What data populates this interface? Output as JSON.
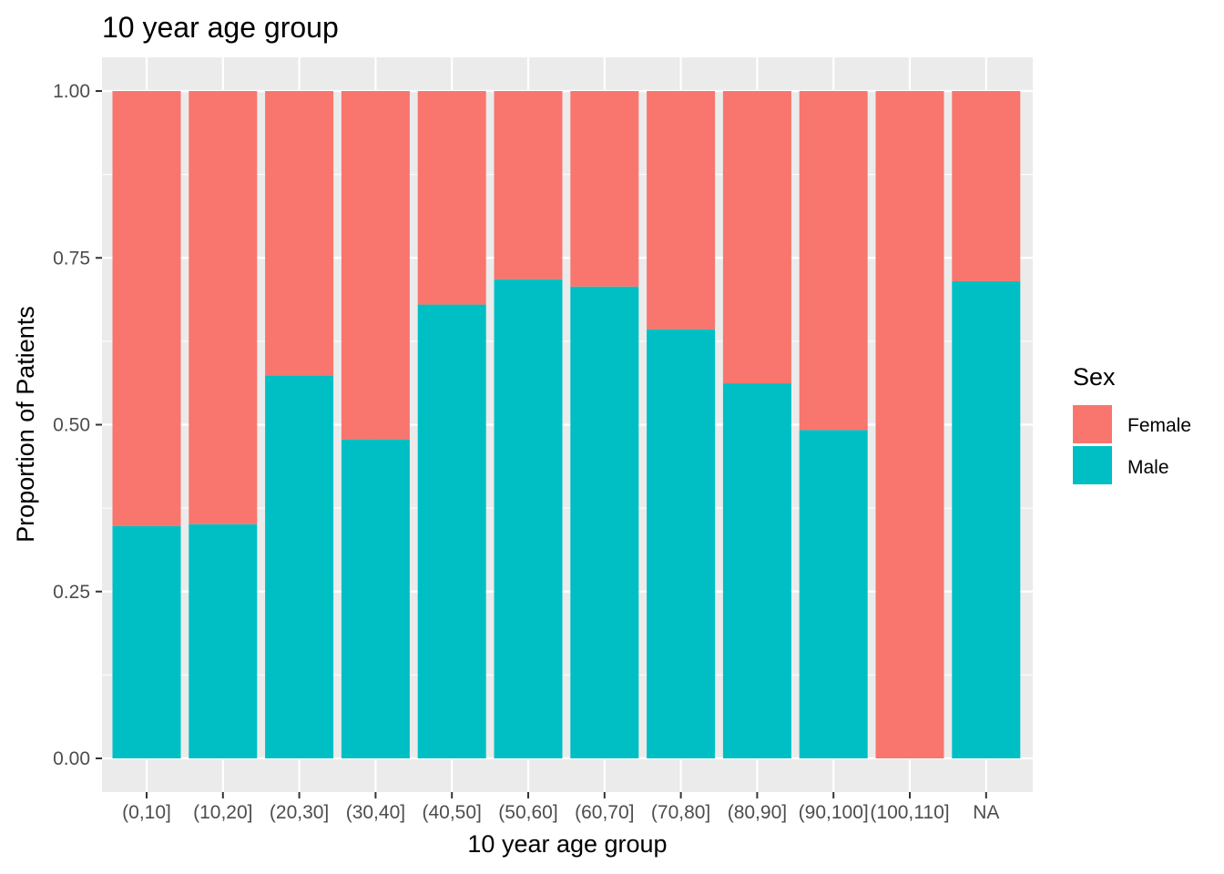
{
  "chart_data": {
    "type": "bar",
    "stacked": true,
    "title": "10 year age group",
    "xlabel": "10 year age group",
    "ylabel": "Proportion of Patients",
    "categories": [
      "(0,10]",
      "(10,20]",
      "(20,30]",
      "(30,40]",
      "(40,50]",
      "(50,60]",
      "(60,70]",
      "(70,80]",
      "(80,90]",
      "(90,100]",
      "(100,110]",
      "NA"
    ],
    "series": [
      {
        "name": "Male",
        "color": "#00BFC4",
        "values": [
          0.348,
          0.351,
          0.574,
          0.478,
          0.68,
          0.718,
          0.707,
          0.643,
          0.562,
          0.492,
          0.0,
          0.715
        ]
      },
      {
        "name": "Female",
        "color": "#F8766D",
        "values": [
          0.652,
          0.649,
          0.426,
          0.522,
          0.32,
          0.282,
          0.293,
          0.357,
          0.438,
          0.508,
          1.0,
          0.285
        ]
      }
    ],
    "ylim": [
      0,
      1
    ],
    "yticks": [
      "0.00",
      "0.25",
      "0.50",
      "0.75",
      "1.00"
    ],
    "grid": true,
    "legend": {
      "title": "Sex",
      "placement": "right",
      "entries": [
        "Female",
        "Male"
      ]
    }
  }
}
